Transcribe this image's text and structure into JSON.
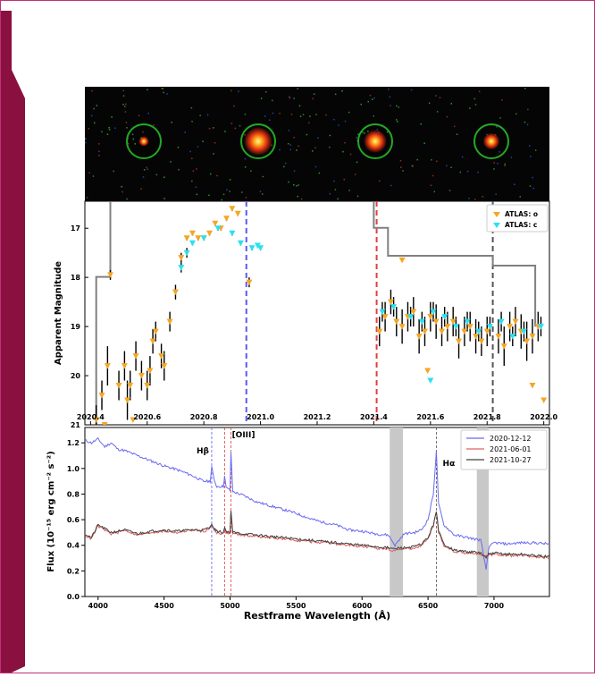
{
  "colors": {
    "frame_border": "#c0307a",
    "side_accent": "#8a1040",
    "atlas_o": "#f5a623",
    "atlas_c": "#29e0f0",
    "error_bar": "#000000",
    "envelope": "#808080",
    "spec_2020_12_12": "#6a6af0",
    "spec_2021_06_01": "#e06060",
    "spec_2021_10_27": "#404040",
    "circle": "#22aa22",
    "telluric_band": "#c8c8c8",
    "vline_blue": "#5a5af0",
    "vline_red": "#e04040",
    "vline_gray": "#555555"
  },
  "stamps": [
    {
      "name": "stamp-1",
      "intensity": 0.15
    },
    {
      "name": "stamp-2",
      "intensity": 1.0
    },
    {
      "name": "stamp-3",
      "intensity": 0.75
    },
    {
      "name": "stamp-4",
      "intensity": 0.45
    }
  ],
  "chart_data": [
    {
      "type": "scatter",
      "ylabel": "Apparent Magnitude",
      "xlabel": "",
      "xlim": [
        2020.38,
        2022.02
      ],
      "ylim": [
        21,
        16.45
      ],
      "y_inverted": true,
      "xticks": [
        "2020.4",
        "2020.6",
        "2020.8",
        "2021.0",
        "2021.2",
        "2021.4",
        "2021.6",
        "2021.8",
        "2022.0"
      ],
      "yticks": [
        "17",
        "18",
        "19",
        "20",
        "21"
      ],
      "legend": {
        "placement": "top-right",
        "entries": [
          "ATLAS: o",
          "ATLAS: c"
        ]
      },
      "vlines": [
        {
          "x": 2020.95,
          "color": "blue",
          "style": "dashed"
        },
        {
          "x": 2021.41,
          "color": "red",
          "style": "dashed"
        },
        {
          "x": 2021.82,
          "color": "gray",
          "style": "dashed"
        }
      ],
      "envelope": {
        "x": [
          2020.42,
          2020.42,
          2020.47,
          2020.47,
          2020.57,
          2020.57,
          2020.95,
          2020.95,
          2021.4,
          2021.4,
          2021.45,
          2021.45,
          2021.82,
          2021.82,
          2021.97,
          2021.97
        ],
        "y": [
          21,
          17.99,
          17.99,
          16.45,
          16.45,
          16.45,
          16.45,
          16.45,
          16.45,
          16.99,
          16.99,
          17.56,
          17.56,
          17.76,
          17.76,
          19.0
        ]
      },
      "series": [
        {
          "name": "ATLAS: o",
          "marker": "triangle-down",
          "x": [
            2020.42,
            2020.44,
            2020.46,
            2020.47,
            2020.5,
            2020.52,
            2020.53,
            2020.54,
            2020.56,
            2020.58,
            2020.6,
            2020.61,
            2020.62,
            2020.63,
            2020.65,
            2020.66,
            2020.68,
            2020.7,
            2020.72,
            2020.74,
            2020.76,
            2020.78,
            2020.8,
            2020.82,
            2020.84,
            2020.86,
            2020.88,
            2020.9,
            2020.92,
            2020.96,
            2021.42,
            2021.44,
            2021.46,
            2021.48,
            2021.5,
            2021.52,
            2021.54,
            2021.56,
            2021.58,
            2021.6,
            2021.62,
            2021.64,
            2021.66,
            2021.68,
            2021.7,
            2021.72,
            2021.74,
            2021.76,
            2021.78,
            2021.8,
            2021.84,
            2021.86,
            2021.88,
            2021.9,
            2021.92,
            2021.94,
            2021.96,
            2021.98,
            2022.0,
            2020.45,
            2020.55,
            2021.5,
            2021.59,
            2021.96
          ],
          "y": [
            20.9,
            20.4,
            19.8,
            17.95,
            20.2,
            19.8,
            20.5,
            20.2,
            19.6,
            20.0,
            20.2,
            19.9,
            19.3,
            19.1,
            19.6,
            19.8,
            18.9,
            18.3,
            17.6,
            17.2,
            17.1,
            17.2,
            17.2,
            17.1,
            16.9,
            17.0,
            16.8,
            16.6,
            16.7,
            18.1,
            19.1,
            18.8,
            18.5,
            18.9,
            19.0,
            18.8,
            18.7,
            19.2,
            19.1,
            18.8,
            18.9,
            19.1,
            19.0,
            18.9,
            19.3,
            19.1,
            19.0,
            19.2,
            19.3,
            19.1,
            19.2,
            19.4,
            19.0,
            18.9,
            19.1,
            19.3,
            19.2,
            19.0,
            20.5,
            21.0,
            20.9,
            17.65,
            19.9,
            20.2
          ],
          "err": [
            0.3,
            0.3,
            0.4,
            0.1,
            0.3,
            0.3,
            0.4,
            0.3,
            0.3,
            0.3,
            0.3,
            0.3,
            0.25,
            0.2,
            0.25,
            0.3,
            0.2,
            0.15,
            0.1,
            0.05,
            0.05,
            0.05,
            0.05,
            0.05,
            0.05,
            0.05,
            0.05,
            0.05,
            0.05,
            0.1,
            0.3,
            0.3,
            0.25,
            0.3,
            0.35,
            0.3,
            0.3,
            0.35,
            0.3,
            0.3,
            0.35,
            0.3,
            0.3,
            0.3,
            0.35,
            0.3,
            0.3,
            0.35,
            0.3,
            0.3,
            0.35,
            0.4,
            0.3,
            0.3,
            0.35,
            0.4,
            0.35,
            0.3,
            0.0,
            0.0,
            0.0,
            0.0,
            0.0,
            0.0
          ]
        },
        {
          "name": "ATLAS: c",
          "marker": "triangle-down",
          "x": [
            2020.72,
            2020.74,
            2020.76,
            2020.8,
            2020.85,
            2020.9,
            2020.93,
            2020.97,
            2020.99,
            2021.0,
            2021.43,
            2021.47,
            2021.53,
            2021.57,
            2021.61,
            2021.65,
            2021.69,
            2021.73,
            2021.77,
            2021.81,
            2021.85,
            2021.89,
            2021.93,
            2021.99,
            2021.6
          ],
          "y": [
            17.8,
            17.5,
            17.3,
            17.2,
            17.0,
            17.1,
            17.3,
            17.4,
            17.35,
            17.4,
            18.7,
            18.6,
            18.8,
            18.9,
            18.7,
            18.8,
            19.0,
            18.9,
            19.1,
            19.0,
            18.9,
            19.2,
            19.1,
            19.0,
            20.1
          ],
          "err": [
            0.1,
            0.1,
            0.05,
            0.05,
            0.05,
            0.05,
            0.05,
            0.05,
            0.05,
            0.05,
            0.2,
            0.2,
            0.2,
            0.2,
            0.2,
            0.2,
            0.2,
            0.2,
            0.2,
            0.2,
            0.2,
            0.2,
            0.2,
            0.2,
            0.0
          ]
        }
      ]
    },
    {
      "type": "line",
      "xlabel": "Restframe Wavelength (Å)",
      "ylabel": "Flux (10⁻¹⁵ erg cm⁻² s⁻²)",
      "xlim": [
        3900,
        7420
      ],
      "ylim": [
        0.0,
        1.32
      ],
      "xticks": [
        "4000",
        "4500",
        "5000",
        "5500",
        "6000",
        "6500",
        "7000"
      ],
      "yticks": [
        "0.0",
        "0.2",
        "0.4",
        "0.6",
        "0.8",
        "1.0",
        "1.2"
      ],
      "legend": {
        "placement": "top-right",
        "entries": [
          "2020-12-12",
          "2021-06-01",
          "2021-10-27"
        ]
      },
      "line_labels": [
        {
          "text": "Hβ",
          "x": 4861
        },
        {
          "text": "[OIII]",
          "x": 5007
        },
        {
          "text": "Hα",
          "x": 6563
        }
      ],
      "shaded_bands": [
        [
          6210,
          6310
        ],
        [
          6870,
          6960
        ]
      ],
      "series": [
        {
          "name": "2020-12-12",
          "x": [
            3900,
            3950,
            4000,
            4050,
            4100,
            4150,
            4200,
            4300,
            4400,
            4500,
            4600,
            4700,
            4800,
            4850,
            4861,
            4880,
            4900,
            4950,
            4959,
            4970,
            5000,
            5007,
            5020,
            5100,
            5200,
            5300,
            5400,
            5500,
            5600,
            5700,
            5800,
            5900,
            6000,
            6100,
            6200,
            6250,
            6280,
            6320,
            6400,
            6450,
            6500,
            6540,
            6563,
            6580,
            6620,
            6700,
            6800,
            6900,
            6940,
            6960,
            7000,
            7100,
            7200,
            7300,
            7420
          ],
          "y": [
            1.22,
            1.2,
            1.23,
            1.17,
            1.2,
            1.15,
            1.14,
            1.1,
            1.06,
            1.02,
            0.99,
            0.95,
            0.9,
            0.9,
            1.02,
            0.9,
            0.86,
            0.86,
            0.95,
            0.85,
            0.83,
            1.13,
            0.82,
            0.79,
            0.74,
            0.71,
            0.68,
            0.65,
            0.61,
            0.58,
            0.56,
            0.52,
            0.51,
            0.49,
            0.48,
            0.4,
            0.44,
            0.49,
            0.5,
            0.52,
            0.6,
            0.8,
            1.13,
            0.72,
            0.56,
            0.48,
            0.46,
            0.44,
            0.21,
            0.38,
            0.42,
            0.41,
            0.42,
            0.42,
            0.41
          ]
        },
        {
          "name": "2021-06-01",
          "x": [
            3900,
            3950,
            4000,
            4050,
            4100,
            4150,
            4200,
            4300,
            4400,
            4500,
            4600,
            4700,
            4800,
            4850,
            4861,
            4880,
            4900,
            4950,
            4959,
            4970,
            5000,
            5007,
            5020,
            5100,
            5200,
            5300,
            5400,
            5500,
            5600,
            5700,
            5800,
            5900,
            6000,
            6100,
            6200,
            6250,
            6280,
            6320,
            6400,
            6450,
            6500,
            6540,
            6563,
            6580,
            6620,
            6700,
            6800,
            6900,
            6940,
            6960,
            7000,
            7100,
            7200,
            7300,
            7420
          ],
          "y": [
            0.48,
            0.45,
            0.55,
            0.52,
            0.49,
            0.5,
            0.52,
            0.48,
            0.5,
            0.51,
            0.5,
            0.52,
            0.51,
            0.53,
            0.56,
            0.52,
            0.5,
            0.49,
            0.53,
            0.5,
            0.49,
            0.66,
            0.49,
            0.48,
            0.47,
            0.46,
            0.45,
            0.44,
            0.43,
            0.42,
            0.41,
            0.4,
            0.39,
            0.38,
            0.37,
            0.36,
            0.37,
            0.37,
            0.38,
            0.4,
            0.45,
            0.55,
            0.66,
            0.5,
            0.4,
            0.35,
            0.34,
            0.33,
            0.31,
            0.32,
            0.33,
            0.32,
            0.32,
            0.31,
            0.3
          ]
        },
        {
          "name": "2021-10-27",
          "x": [
            3900,
            3950,
            4000,
            4050,
            4100,
            4150,
            4200,
            4300,
            4400,
            4500,
            4600,
            4700,
            4800,
            4850,
            4861,
            4880,
            4900,
            4950,
            4959,
            4970,
            5000,
            5007,
            5020,
            5100,
            5200,
            5300,
            5400,
            5500,
            5600,
            5700,
            5800,
            5900,
            6000,
            6100,
            6200,
            6250,
            6280,
            6320,
            6400,
            6450,
            6500,
            6540,
            6563,
            6580,
            6620,
            6700,
            6800,
            6900,
            6940,
            6960,
            7000,
            7100,
            7200,
            7300,
            7420
          ],
          "y": [
            0.49,
            0.46,
            0.56,
            0.53,
            0.5,
            0.51,
            0.52,
            0.49,
            0.51,
            0.52,
            0.51,
            0.52,
            0.52,
            0.54,
            0.57,
            0.53,
            0.51,
            0.5,
            0.54,
            0.51,
            0.5,
            0.68,
            0.5,
            0.49,
            0.48,
            0.47,
            0.46,
            0.45,
            0.44,
            0.43,
            0.42,
            0.41,
            0.4,
            0.39,
            0.38,
            0.37,
            0.38,
            0.38,
            0.39,
            0.41,
            0.46,
            0.56,
            0.67,
            0.51,
            0.41,
            0.36,
            0.35,
            0.34,
            0.3,
            0.33,
            0.34,
            0.33,
            0.33,
            0.32,
            0.31
          ]
        }
      ]
    }
  ]
}
